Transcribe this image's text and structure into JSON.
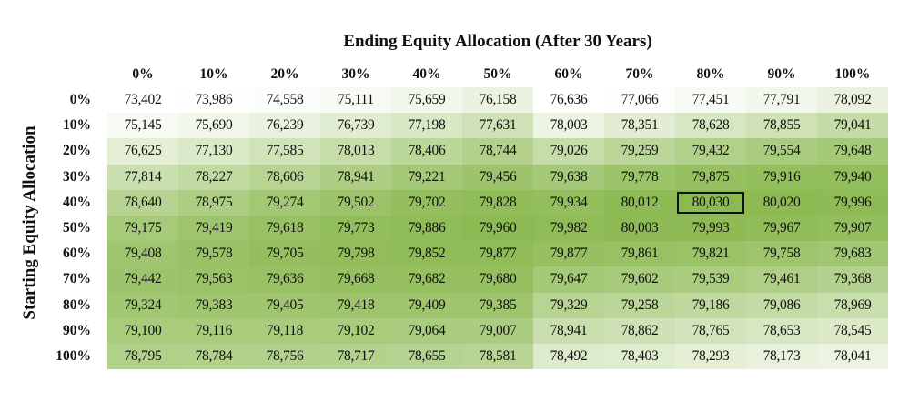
{
  "chart_data": {
    "type": "heatmap",
    "title": "Ending Equity Allocation (After 30 Years)",
    "xlabel": "Ending Equity Allocation (After 30 Years)",
    "ylabel": "Starting Equity Allocation",
    "columns": [
      "0%",
      "10%",
      "20%",
      "30%",
      "40%",
      "50%",
      "60%",
      "70%",
      "80%",
      "90%",
      "100%"
    ],
    "rows": [
      "0%",
      "10%",
      "20%",
      "30%",
      "40%",
      "50%",
      "60%",
      "70%",
      "80%",
      "90%",
      "100%"
    ],
    "values": [
      [
        "73,402",
        "73,986",
        "74,558",
        "75,111",
        "75,659",
        "76,158",
        "76,636",
        "77,066",
        "77,451",
        "77,791",
        "78,092"
      ],
      [
        "75,145",
        "75,690",
        "76,239",
        "76,739",
        "77,198",
        "77,631",
        "78,003",
        "78,351",
        "78,628",
        "78,855",
        "79,041"
      ],
      [
        "76,625",
        "77,130",
        "77,585",
        "78,013",
        "78,406",
        "78,744",
        "79,026",
        "79,259",
        "79,432",
        "79,554",
        "79,648"
      ],
      [
        "77,814",
        "78,227",
        "78,606",
        "78,941",
        "79,221",
        "79,456",
        "79,638",
        "79,778",
        "79,875",
        "79,916",
        "79,940"
      ],
      [
        "78,640",
        "78,975",
        "79,274",
        "79,502",
        "79,702",
        "79,828",
        "79,934",
        "80,012",
        "80,030",
        "80,020",
        "79,996"
      ],
      [
        "79,175",
        "79,419",
        "79,618",
        "79,773",
        "79,886",
        "79,960",
        "79,982",
        "80,003",
        "79,993",
        "79,967",
        "79,907"
      ],
      [
        "79,408",
        "79,578",
        "79,705",
        "79,798",
        "79,852",
        "79,877",
        "79,877",
        "79,861",
        "79,821",
        "79,758",
        "79,683"
      ],
      [
        "79,442",
        "79,563",
        "79,636",
        "79,668",
        "79,682",
        "79,680",
        "79,647",
        "79,602",
        "79,539",
        "79,461",
        "79,368"
      ],
      [
        "79,324",
        "79,383",
        "79,405",
        "79,418",
        "79,409",
        "79,385",
        "79,329",
        "79,258",
        "79,186",
        "79,086",
        "78,969"
      ],
      [
        "79,100",
        "79,116",
        "79,118",
        "79,102",
        "79,064",
        "79,007",
        "78,941",
        "78,862",
        "78,765",
        "78,653",
        "78,545"
      ],
      [
        "78,795",
        "78,784",
        "78,756",
        "78,717",
        "78,655",
        "78,581",
        "78,492",
        "78,403",
        "78,293",
        "78,173",
        "78,041"
      ]
    ],
    "highlight": {
      "row": "40%",
      "column": "80%"
    },
    "color_low": "#ffffff",
    "color_high": "#8cba52"
  }
}
